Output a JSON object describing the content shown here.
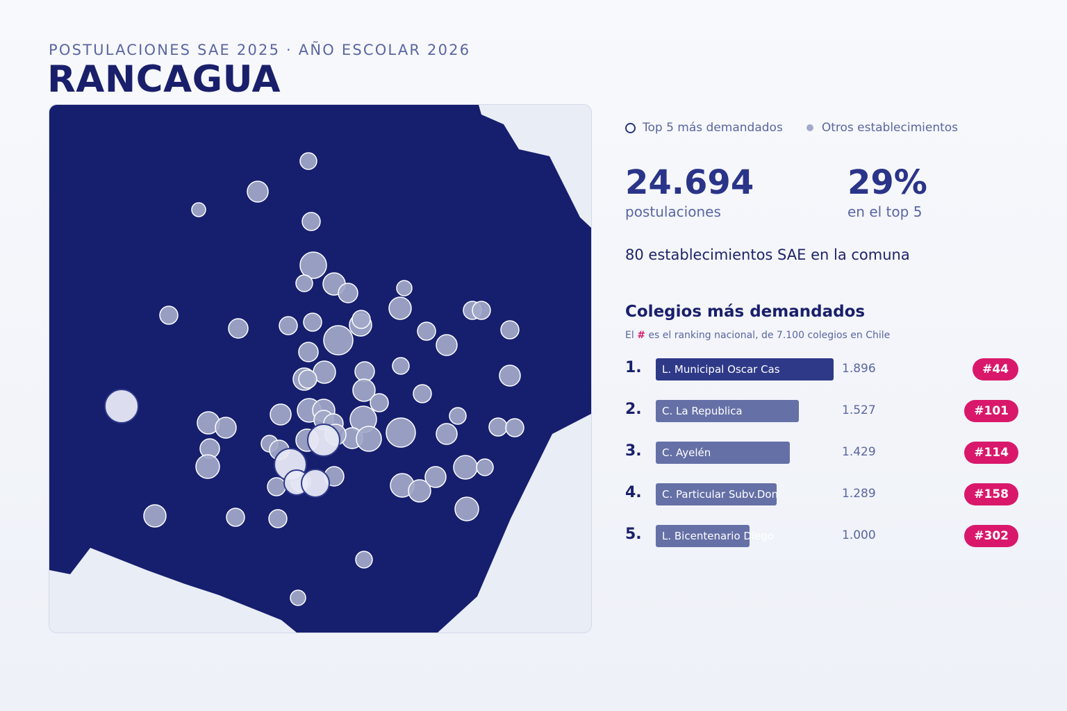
{
  "header": {
    "kicker": "POSTULACIONES SAE 2025 · AÑO ESCOLAR 2026",
    "title": "RANCAGUA"
  },
  "legend": {
    "top5": "Top 5 más demandados",
    "others": "Otros establecimientos"
  },
  "stats": {
    "applications_value": "24.694",
    "applications_label": "postulaciones",
    "top5_share_value": "29%",
    "top5_share_label": "en el top 5"
  },
  "summary": "80 establecimientos SAE en la comuna",
  "ranking": {
    "title": "Colegios más demandados",
    "note_prefix": "El",
    "note_hash": "#",
    "note_suffix": "es el ranking nacional, de 7.100 colegios en Chile",
    "max_value": 1896,
    "items": [
      {
        "rank": "1.",
        "name": "L. Municipal Oscar Cas",
        "value": 1896,
        "value_label": "1.896",
        "national_rank": "#44"
      },
      {
        "rank": "2.",
        "name": "C. La Republica",
        "value": 1527,
        "value_label": "1.527",
        "national_rank": "#101"
      },
      {
        "rank": "3.",
        "name": "C. Ayelén",
        "value": 1429,
        "value_label": "1.429",
        "national_rank": "#114"
      },
      {
        "rank": "4.",
        "name": "C. Particular Subv.Don",
        "value": 1289,
        "value_label": "1.289",
        "national_rank": "#158"
      },
      {
        "rank": "5.",
        "name": "L. Bicentenario Diego",
        "value": 1000,
        "value_label": "1.000",
        "national_rank": "#302"
      }
    ]
  },
  "colors": {
    "comuna_fill": "#161e6e",
    "background_area": "#e9edf6",
    "other_marker": "#a3a9c9",
    "top5_marker": "#e7e9f5",
    "badge": "#d9186b"
  }
}
